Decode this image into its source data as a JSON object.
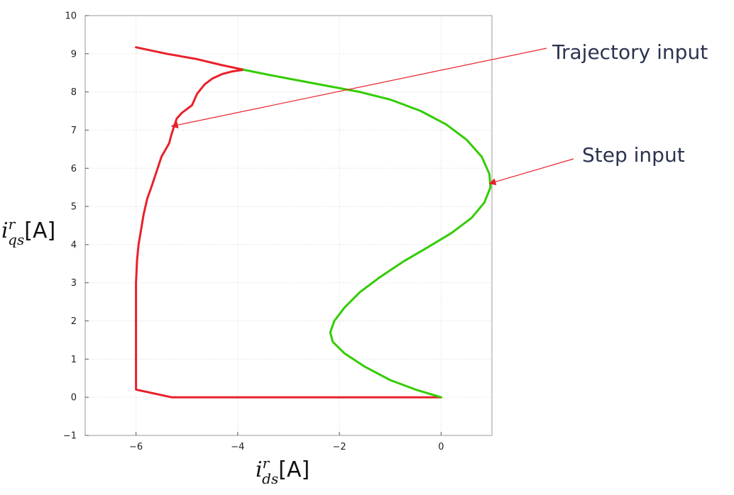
{
  "chart_data": {
    "type": "line",
    "xlabel": {
      "var": "i",
      "sup": "r",
      "sub": "ds",
      "unit": "[A]"
    },
    "ylabel": {
      "var": "i",
      "sup": "r",
      "sub": "qs",
      "unit": "[A]"
    },
    "xlim": [
      -7,
      1
    ],
    "ylim": [
      -1,
      10
    ],
    "xticks": [
      -6,
      -4,
      -2,
      0
    ],
    "xtick_labels": [
      "−6",
      "−4",
      "−2",
      "0"
    ],
    "yticks": [
      -1,
      0,
      1,
      2,
      3,
      4,
      5,
      6,
      7,
      8,
      9,
      10
    ],
    "ytick_labels": [
      "−1",
      "0",
      "1",
      "2",
      "3",
      "4",
      "5",
      "6",
      "7",
      "8",
      "9",
      "10"
    ],
    "grid": true,
    "series": [
      {
        "color": "#e8212a",
        "x": [
          0,
          -2.0,
          -4.3,
          -5.3,
          -6.0,
          -6.0,
          -6.0,
          -5.98,
          -5.95,
          -5.9,
          -5.85,
          -5.78,
          -5.7,
          -5.6,
          -5.5,
          -5.35,
          -5.3,
          -5.25,
          -5.2,
          -5.1,
          -4.9,
          -4.8,
          -4.65,
          -4.5,
          -4.3,
          -4.1,
          -3.88,
          -4.3,
          -4.8,
          -5.4,
          -6.0
        ],
        "y": [
          0,
          0,
          0,
          0,
          0.2,
          1.5,
          3.0,
          3.6,
          4.0,
          4.4,
          4.8,
          5.2,
          5.5,
          5.9,
          6.3,
          6.65,
          6.9,
          7.1,
          7.3,
          7.45,
          7.65,
          7.95,
          8.2,
          8.35,
          8.47,
          8.54,
          8.58,
          8.7,
          8.86,
          9.0,
          9.17
        ]
      },
      {
        "color": "#33cc00",
        "x": [
          0,
          -0.5,
          -1.0,
          -1.5,
          -1.9,
          -2.13,
          -2.18,
          -2.1,
          -1.9,
          -1.6,
          -1.2,
          -0.75,
          -0.3,
          0.2,
          0.6,
          0.85,
          0.97,
          0.95,
          0.8,
          0.5,
          0.1,
          -0.4,
          -1.0,
          -1.6,
          -2.2,
          -2.8,
          -3.4,
          -3.88
        ],
        "y": [
          0,
          0.2,
          0.45,
          0.8,
          1.15,
          1.45,
          1.7,
          2.0,
          2.35,
          2.75,
          3.15,
          3.55,
          3.9,
          4.3,
          4.7,
          5.1,
          5.5,
          5.85,
          6.3,
          6.75,
          7.15,
          7.5,
          7.8,
          8.0,
          8.15,
          8.3,
          8.45,
          8.58
        ]
      }
    ],
    "annotations": [
      {
        "text": "Trajectory input",
        "xy": [
          -5.3,
          7.1
        ]
      },
      {
        "text": "Step input",
        "xy": [
          0.95,
          5.6
        ]
      }
    ]
  }
}
